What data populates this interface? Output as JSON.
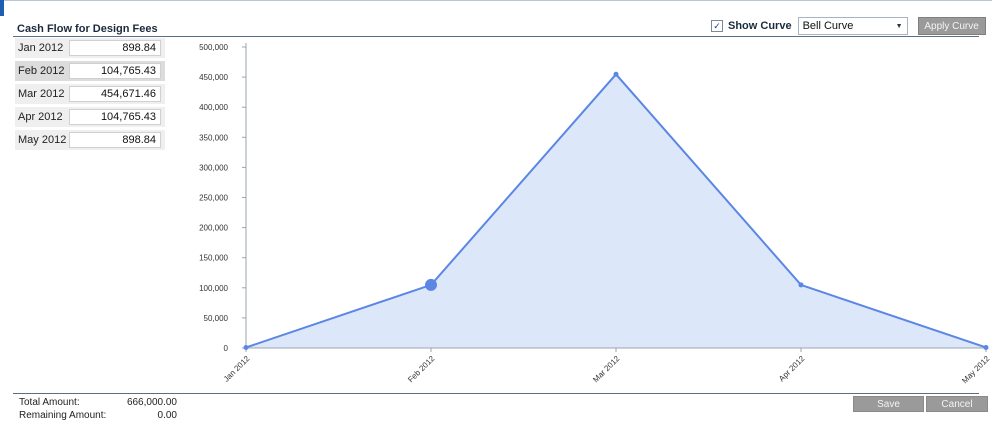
{
  "header": {
    "title": "Cash Flow for Design Fees",
    "show_curve_label": "Show Curve",
    "show_curve_checked": true,
    "curve_select_value": "Bell Curve",
    "apply_button": "Apply Curve"
  },
  "months": [
    {
      "label": "Jan  2012",
      "value": "898.84"
    },
    {
      "label": "Feb  2012",
      "value": "104,765.43"
    },
    {
      "label": "Mar  2012",
      "value": "454,671.46"
    },
    {
      "label": "Apr  2012",
      "value": "104,765.43"
    },
    {
      "label": "May  2012",
      "value": "898.84"
    }
  ],
  "chart_data": {
    "type": "area",
    "categories": [
      "Jan 2012",
      "Feb 2012",
      "Mar 2012",
      "Apr 2012",
      "May 2012"
    ],
    "values": [
      898.84,
      104765.43,
      454671.46,
      104765.43,
      898.84
    ],
    "y_ticks": [
      "0",
      "50,000",
      "100,000",
      "150,000",
      "200,000",
      "250,000",
      "300,000",
      "350,000",
      "400,000",
      "450,000",
      "500,000"
    ],
    "ylim": [
      0,
      500000
    ],
    "highlight_index": 1,
    "line_color": "#5b86e5",
    "fill_color": "#dce7fa",
    "grid": false
  },
  "footer": {
    "total_label": "Total Amount:",
    "total_value": "666,000.00",
    "remaining_label": "Remaining Amount:",
    "remaining_value": "0.00",
    "save_button": "Save",
    "cancel_button": "Cancel"
  }
}
